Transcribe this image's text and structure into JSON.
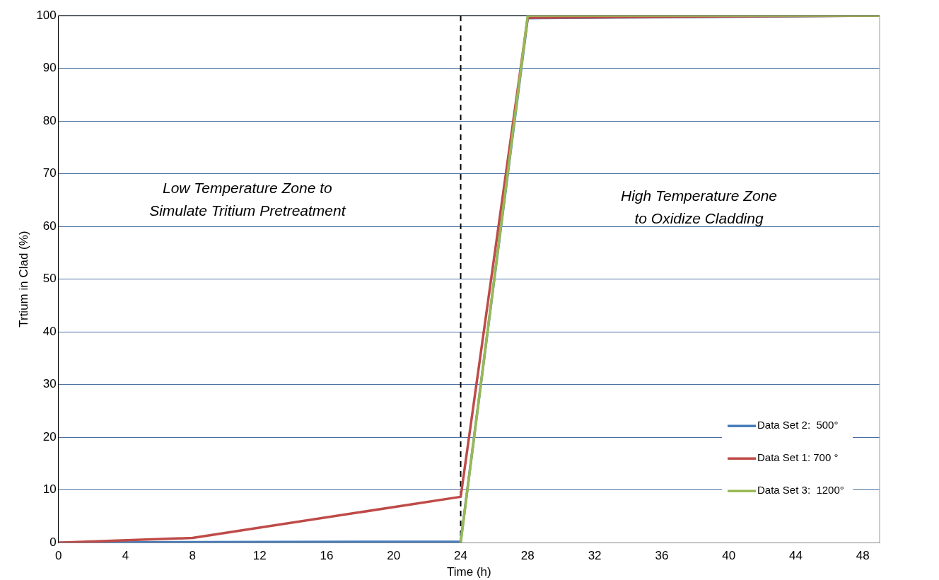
{
  "chart_data": {
    "type": "line",
    "xlabel": "Time (h)",
    "ylabel": "Trtium in Clad (%)",
    "xlim": [
      0,
      49
    ],
    "xticks": [
      0,
      4,
      8,
      12,
      16,
      20,
      24,
      28,
      32,
      36,
      40,
      44,
      48
    ],
    "ylim": [
      0,
      100
    ],
    "yticks": [
      0,
      10,
      20,
      30,
      40,
      50,
      60,
      70,
      80,
      90,
      100
    ],
    "grid": "y",
    "legend": "bottom right",
    "marker": "none",
    "line_style": "solid",
    "series": [
      {
        "name": "Data Set 2:  500°",
        "color": "#4a7ebb",
        "x": [
          0,
          8,
          24,
          28,
          49
        ],
        "values": [
          0,
          0.1,
          0.2,
          99.5,
          100
        ]
      },
      {
        "name": "Data Set 1: 700 °",
        "color": "#be4b48",
        "x": [
          0,
          8,
          24,
          28,
          49
        ],
        "values": [
          0,
          0.9,
          8.7,
          99.6,
          100
        ]
      },
      {
        "name": "Data Set 3:  1200°",
        "color": "#98b954",
        "x": [
          24,
          28,
          49
        ],
        "values": [
          0,
          100,
          100
        ]
      }
    ],
    "ref_lines": [
      {
        "axis": "x",
        "value": 24,
        "color": "#000000",
        "line_style": "dashed"
      }
    ],
    "annotations": [
      "Low Temperature Zone to\nSimulate Tritium Pretreatment",
      "High Temperature Zone\nto Oxidize Cladding"
    ]
  }
}
